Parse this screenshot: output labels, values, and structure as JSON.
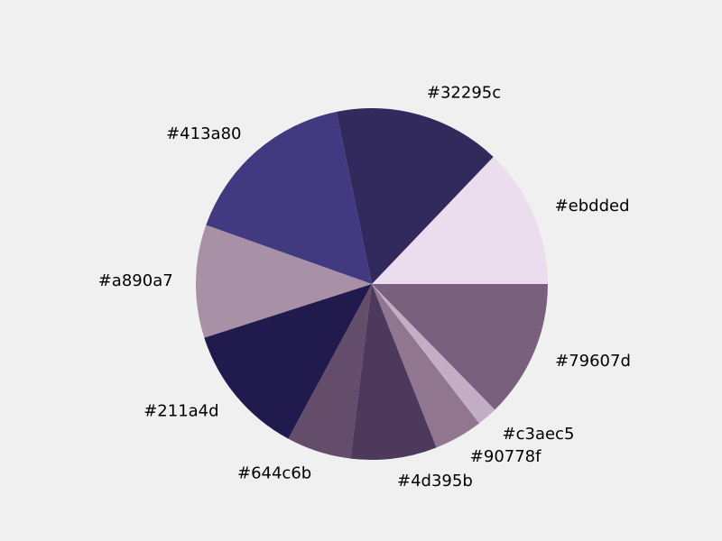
{
  "chart_data": {
    "type": "pie",
    "title": "",
    "start_angle_deg": 0,
    "direction": "counterclockwise",
    "slices": [
      {
        "label": "#ebdded",
        "value": 13.0,
        "color": "#ebdded"
      },
      {
        "label": "#32295c",
        "value": 15.5,
        "color": "#32295c"
      },
      {
        "label": "#413a80",
        "value": 16.5,
        "color": "#413a80"
      },
      {
        "label": "#a890a7",
        "value": 10.5,
        "color": "#a890a7"
      },
      {
        "label": "#211a4d",
        "value": 12.3,
        "color": "#211a4d"
      },
      {
        "label": "#644c6b",
        "value": 6.0,
        "color": "#644c6b"
      },
      {
        "label": "#4d395b",
        "value": 8.0,
        "color": "#4d395b"
      },
      {
        "label": "#90778f",
        "value": 4.5,
        "color": "#90778f"
      },
      {
        "label": "#c3aec5",
        "value": 1.9,
        "color": "#c3aec5"
      },
      {
        "label": "#79607d",
        "value": 12.8,
        "color": "#79607d"
      }
    ]
  }
}
